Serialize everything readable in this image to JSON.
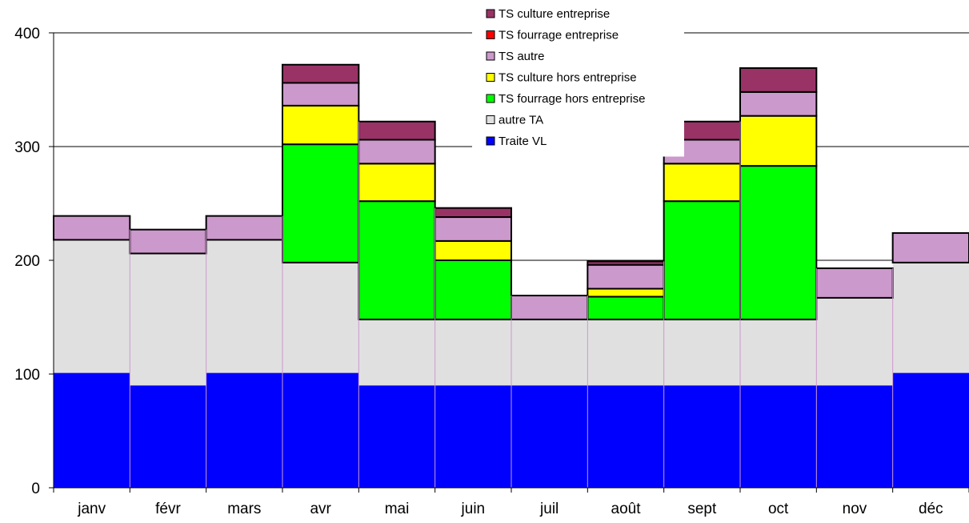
{
  "chart_data": {
    "type": "bar",
    "stacked": true,
    "categories": [
      "janv",
      "févr",
      "mars",
      "avr",
      "mai",
      "juin",
      "juil",
      "août",
      "sept",
      "oct",
      "nov",
      "déc"
    ],
    "ylim": [
      0,
      400
    ],
    "yticks": [
      0,
      100,
      200,
      300,
      400
    ],
    "grid": true,
    "legend_position": "top-right",
    "series": [
      {
        "name": "Traite VL",
        "color": "#0000FF",
        "outline": false,
        "values": [
          101,
          90,
          101,
          101,
          90,
          90,
          90,
          90,
          90,
          90,
          90,
          101
        ]
      },
      {
        "name": "autre TA",
        "color": "#E0E0E0",
        "outline": false,
        "values": [
          117,
          116,
          117,
          97,
          58,
          58,
          58,
          58,
          58,
          58,
          77,
          97
        ]
      },
      {
        "name": "TS fourrage hors entreprise",
        "color": "#00FF00",
        "outline": true,
        "values": [
          0,
          0,
          0,
          104,
          104,
          52,
          0,
          20,
          104,
          135,
          0,
          0
        ]
      },
      {
        "name": "TS culture hors entreprise",
        "color": "#FFFF00",
        "outline": true,
        "values": [
          0,
          0,
          0,
          34,
          33,
          17,
          0,
          7,
          33,
          44,
          0,
          0
        ]
      },
      {
        "name": "TS autre",
        "color": "#CC99CC",
        "outline": true,
        "values": [
          21,
          21,
          21,
          20,
          21,
          21,
          21,
          21,
          21,
          21,
          26,
          26
        ]
      },
      {
        "name": "TS fourrage entreprise",
        "color": "#FF0000",
        "outline": true,
        "values": [
          0,
          0,
          0,
          0,
          0,
          0,
          0,
          0,
          0,
          0,
          0,
          0
        ]
      },
      {
        "name": "TS culture entreprise",
        "color": "#993366",
        "outline": true,
        "values": [
          0,
          0,
          0,
          16,
          16,
          8,
          0,
          3,
          16,
          21,
          0,
          0
        ]
      }
    ]
  }
}
